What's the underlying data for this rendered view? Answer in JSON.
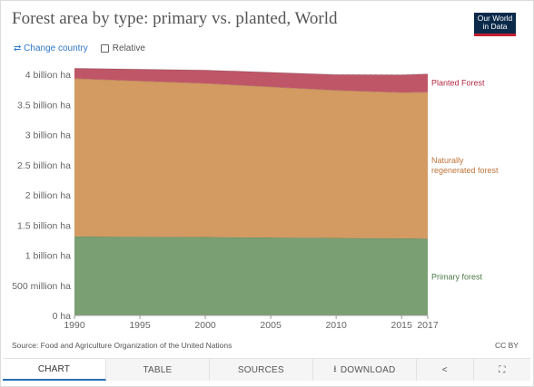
{
  "title": "Forest area by type: primary vs. planted, World",
  "logo": {
    "line1": "Our World",
    "line2": "in Data"
  },
  "controls": {
    "change_country": "Change country",
    "relative": "Relative"
  },
  "source": "Source: Food and Agriculture Organization of the United Nations",
  "license": "CC BY",
  "tabs": [
    "CHART",
    "TABLE",
    "SOURCES",
    "DOWNLOAD"
  ],
  "icons": {
    "change": "swap-icon",
    "download": "download-icon",
    "share": "share-icon",
    "fullscreen": "expand-icon"
  },
  "colors": {
    "primary": "#7a9f72",
    "naturally": "#d39a61",
    "planted": "#bf5668"
  },
  "chart_data": {
    "type": "area",
    "stacked": true,
    "x": [
      1990,
      2000,
      2010,
      2015,
      2017
    ],
    "x_ticks": [
      1990,
      1995,
      2000,
      2005,
      2010,
      2015,
      2017
    ],
    "y_ticks": [
      0,
      500000000,
      1000000000,
      1500000000,
      2000000000,
      2500000000,
      3000000000,
      3500000000,
      4000000000
    ],
    "y_tick_labels": [
      "0 ha",
      "500 million ha",
      "1 billion ha",
      "1.5 billion ha",
      "2 billion ha",
      "2.5 billion ha",
      "3 billion ha",
      "3.5 billion ha",
      "4 billion ha"
    ],
    "ylim": [
      0,
      4000000000
    ],
    "series": [
      {
        "name": "Primary forest",
        "values": [
          1310000000,
          1300000000,
          1285000000,
          1280000000,
          1275000000
        ]
      },
      {
        "name": "Naturally regenerated forest",
        "values": [
          2620000000,
          2550000000,
          2450000000,
          2420000000,
          2430000000
        ]
      },
      {
        "name": "Planted Forest",
        "values": [
          170000000,
          220000000,
          260000000,
          290000000,
          300000000
        ]
      }
    ],
    "legend_labels": {
      "Primary forest": [
        "Primary forest"
      ],
      "Naturally regenerated forest": [
        "Naturally",
        "regenerated forest"
      ],
      "Planted Forest": [
        "Planted Forest"
      ]
    },
    "grid": true,
    "legend_placement": "right"
  }
}
